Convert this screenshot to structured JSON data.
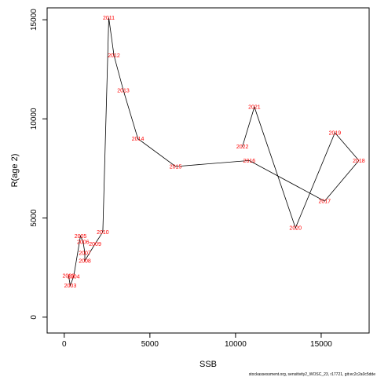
{
  "chart_data": {
    "type": "line",
    "title": "",
    "xlabel": "SSB",
    "ylabel": "R(age 2)",
    "xlim": [
      -1000,
      17800
    ],
    "ylim": [
      -800,
      15600
    ],
    "x_ticks": [
      0,
      5000,
      10000,
      15000
    ],
    "y_ticks": [
      0,
      5000,
      10000,
      15000
    ],
    "grid": false,
    "line_color": "#000000",
    "label_color": "#ff0000",
    "footnote": "stockassessment.org, sensitivity2_WOSC_23, r17721, git:ec2c2a0c5dde",
    "points": [
      {
        "year": "2002",
        "x": 250,
        "y": 2100
      },
      {
        "year": "2003",
        "x": 350,
        "y": 1600
      },
      {
        "year": "2004",
        "x": 550,
        "y": 2050
      },
      {
        "year": "2005",
        "x": 950,
        "y": 4100
      },
      {
        "year": "2006",
        "x": 1100,
        "y": 3800
      },
      {
        "year": "2007",
        "x": 1200,
        "y": 3250
      },
      {
        "year": "2008",
        "x": 1200,
        "y": 2850
      },
      {
        "year": "2009",
        "x": 1800,
        "y": 3700
      },
      {
        "year": "2010",
        "x": 2250,
        "y": 4300
      },
      {
        "year": "2011",
        "x": 2600,
        "y": 15100
      },
      {
        "year": "2012",
        "x": 2900,
        "y": 13200
      },
      {
        "year": "2013",
        "x": 3450,
        "y": 11450
      },
      {
        "year": "2014",
        "x": 4300,
        "y": 9000
      },
      {
        "year": "2015",
        "x": 6500,
        "y": 7600
      },
      {
        "year": "2016",
        "x": 10800,
        "y": 7900
      },
      {
        "year": "2017",
        "x": 15200,
        "y": 5850
      },
      {
        "year": "2018",
        "x": 17200,
        "y": 7900
      },
      {
        "year": "2019",
        "x": 15800,
        "y": 9300
      },
      {
        "year": "2020",
        "x": 13500,
        "y": 4500
      },
      {
        "year": "2021",
        "x": 11100,
        "y": 10600
      },
      {
        "year": "2022",
        "x": 10400,
        "y": 8600
      }
    ]
  }
}
